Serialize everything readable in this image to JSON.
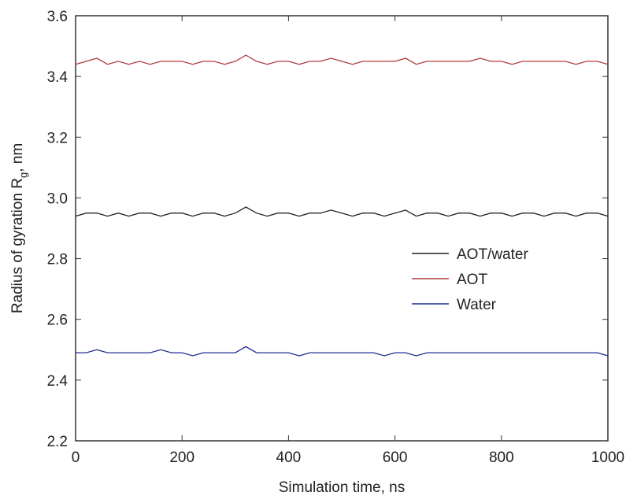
{
  "chart_data": {
    "type": "line",
    "xlabel": "Simulation time, ns",
    "ylabel": [
      "Radius of gyration R",
      "g",
      ", nm"
    ],
    "x": [
      0,
      20,
      40,
      60,
      80,
      100,
      120,
      140,
      160,
      180,
      200,
      220,
      240,
      260,
      280,
      300,
      320,
      340,
      360,
      380,
      400,
      420,
      440,
      460,
      480,
      500,
      520,
      540,
      560,
      580,
      600,
      620,
      640,
      660,
      680,
      700,
      720,
      740,
      760,
      780,
      800,
      820,
      840,
      860,
      880,
      900,
      920,
      940,
      960,
      980,
      1000
    ],
    "series": [
      {
        "name": "AOT/water",
        "color": "#222222",
        "values": [
          2.94,
          2.95,
          2.95,
          2.94,
          2.95,
          2.94,
          2.95,
          2.95,
          2.94,
          2.95,
          2.95,
          2.94,
          2.95,
          2.95,
          2.94,
          2.95,
          2.97,
          2.95,
          2.94,
          2.95,
          2.95,
          2.94,
          2.95,
          2.95,
          2.96,
          2.95,
          2.94,
          2.95,
          2.95,
          2.94,
          2.95,
          2.96,
          2.94,
          2.95,
          2.95,
          2.94,
          2.95,
          2.95,
          2.94,
          2.95,
          2.95,
          2.94,
          2.95,
          2.95,
          2.94,
          2.95,
          2.95,
          2.94,
          2.95,
          2.95,
          2.94
        ]
      },
      {
        "name": "AOT",
        "color": "#b03a3a",
        "values": [
          3.44,
          3.45,
          3.46,
          3.44,
          3.45,
          3.44,
          3.45,
          3.44,
          3.45,
          3.45,
          3.45,
          3.44,
          3.45,
          3.45,
          3.44,
          3.45,
          3.47,
          3.45,
          3.44,
          3.45,
          3.45,
          3.44,
          3.45,
          3.45,
          3.46,
          3.45,
          3.44,
          3.45,
          3.45,
          3.45,
          3.45,
          3.46,
          3.44,
          3.45,
          3.45,
          3.45,
          3.45,
          3.45,
          3.46,
          3.45,
          3.45,
          3.44,
          3.45,
          3.45,
          3.45,
          3.45,
          3.45,
          3.44,
          3.45,
          3.45,
          3.44
        ]
      },
      {
        "name": "Water",
        "color": "#1f2d8f",
        "values": [
          2.49,
          2.49,
          2.5,
          2.49,
          2.49,
          2.49,
          2.49,
          2.49,
          2.5,
          2.49,
          2.49,
          2.48,
          2.49,
          2.49,
          2.49,
          2.49,
          2.51,
          2.49,
          2.49,
          2.49,
          2.49,
          2.48,
          2.49,
          2.49,
          2.49,
          2.49,
          2.49,
          2.49,
          2.49,
          2.48,
          2.49,
          2.49,
          2.48,
          2.49,
          2.49,
          2.49,
          2.49,
          2.49,
          2.49,
          2.49,
          2.49,
          2.49,
          2.49,
          2.49,
          2.49,
          2.49,
          2.49,
          2.49,
          2.49,
          2.49,
          2.48
        ]
      }
    ],
    "xlim": [
      0,
      1000
    ],
    "xticks": [
      0,
      200,
      400,
      600,
      800,
      1000
    ],
    "ylim": [
      2.2,
      3.6
    ],
    "yticks": [
      2.2,
      2.4,
      2.6,
      2.8,
      {
        "value": 3,
        "label": "3.0"
      },
      3.2,
      3.4,
      3.6
    ],
    "grid": false,
    "legend": "right"
  }
}
